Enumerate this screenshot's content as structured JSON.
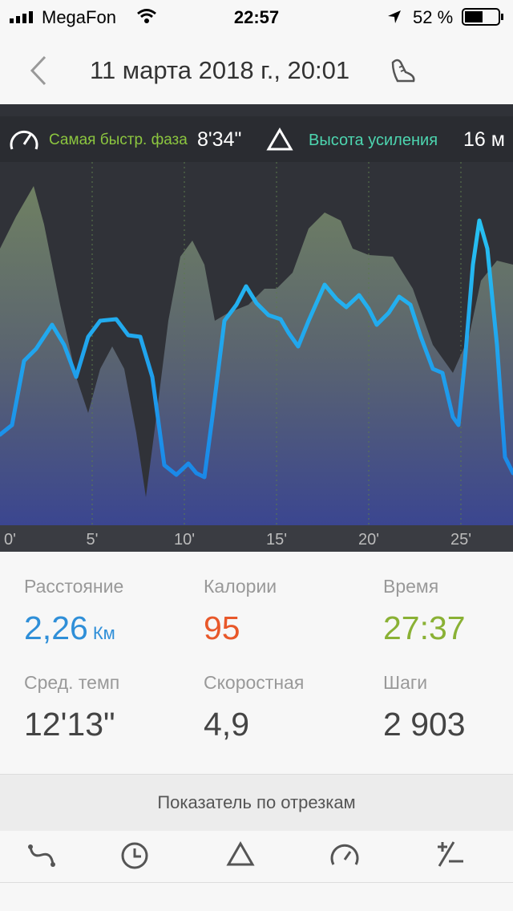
{
  "status": {
    "carrier": "MegaFon",
    "time": "22:57",
    "battery": "52 %"
  },
  "header": {
    "title": "11 марта 2018 г., 20:01"
  },
  "summary": {
    "fastest_label": "Самая быстр. фаза",
    "fastest_value": "8'34\"",
    "elevation_label": "Высота усиления",
    "elevation_value": "16 м"
  },
  "chart": {
    "x_labels": [
      "0'",
      "5'",
      "10'",
      "15'",
      "20'",
      "25'"
    ]
  },
  "metrics": [
    {
      "label": "Расстояние",
      "value": "2,26",
      "unit": "Км"
    },
    {
      "label": "Калории",
      "value": "95"
    },
    {
      "label": "Время",
      "value": "27:37"
    },
    {
      "label": "Сред. темп",
      "value": "12'13\""
    },
    {
      "label": "Скоростная",
      "value": "4,9"
    },
    {
      "label": "Шаги",
      "value": "2 903"
    }
  ],
  "section_button": "Показатель по отрезкам"
}
